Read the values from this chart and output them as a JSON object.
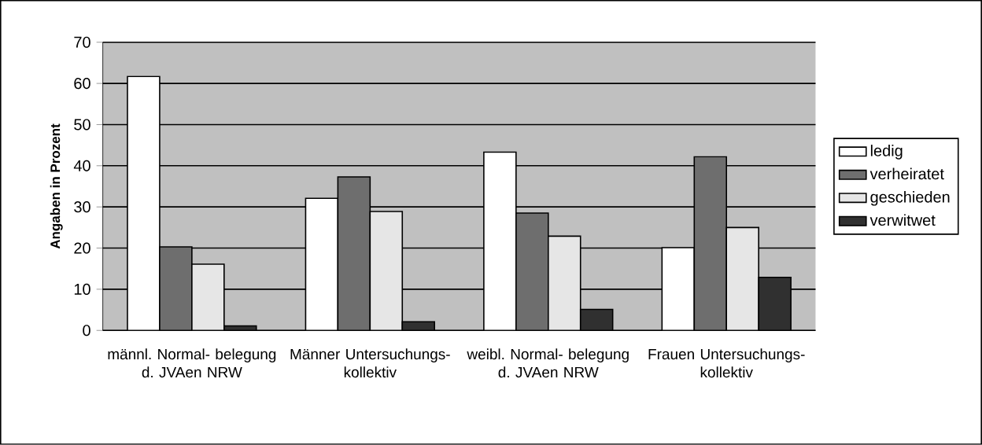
{
  "chart_data": {
    "type": "bar",
    "ylabel": "Angaben in Prozent",
    "categories": [
      "männl. Normal- belegung d. JVAen NRW",
      "Männer Untersuchungs- kollektiv",
      "weibl. Normal- belegung d. JVAen NRW",
      "Frauen Untersuchungs- kollektiv"
    ],
    "series": [
      {
        "name": "ledig",
        "color": "#ffffff",
        "values": [
          61.7,
          32.1,
          43.3,
          20.1
        ]
      },
      {
        "name": "verheiratet",
        "color": "#6e6e6e",
        "values": [
          20.3,
          37.3,
          28.5,
          42.2
        ]
      },
      {
        "name": "geschieden",
        "color": "#e6e6e6",
        "values": [
          16.1,
          28.9,
          22.9,
          25.0
        ]
      },
      {
        "name": "verwitwet",
        "color": "#303030",
        "values": [
          1.1,
          2.1,
          5.1,
          12.9
        ]
      }
    ],
    "ylim": [
      0,
      70
    ],
    "yticks": [
      0,
      10,
      20,
      30,
      40,
      50,
      60,
      70
    ],
    "grid": "y",
    "legend": "right"
  }
}
